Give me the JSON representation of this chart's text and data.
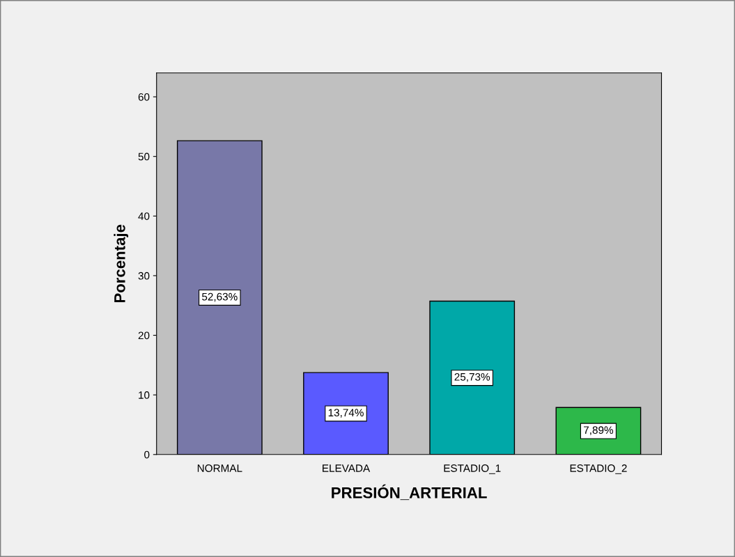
{
  "chart_data": {
    "type": "bar",
    "xlabel": "PRESIÓN_ARTERIAL",
    "ylabel": "Porcentaje",
    "categories": [
      "NORMAL",
      "ELEVADA",
      "ESTADIO_1",
      "ESTADIO_2"
    ],
    "values": [
      52.63,
      13.74,
      25.73,
      7.89
    ],
    "colors": [
      "#7878a8",
      "#5a5aff",
      "#00a8a8",
      "#2db84a"
    ],
    "value_labels": [
      "52,63%",
      "13,74%",
      "25,73%",
      "7,89%"
    ],
    "ylim": [
      0,
      64
    ],
    "yticks": [
      0,
      10,
      20,
      30,
      40,
      50,
      60
    ],
    "grid": false
  }
}
